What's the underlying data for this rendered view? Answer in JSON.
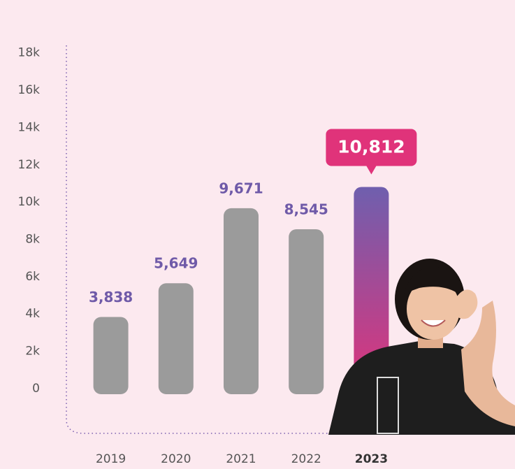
{
  "chart_data": {
    "type": "bar",
    "categories": [
      "2019",
      "2020",
      "2021",
      "2022",
      "2023"
    ],
    "values": [
      3838,
      5649,
      9671,
      8545,
      10812
    ],
    "value_labels": [
      "3,838",
      "5,649",
      "9,671",
      "8,545",
      "10,812"
    ],
    "color": "#9b9b9b",
    "highlight": 4,
    "highlight_colors": [
      "#6f5fae",
      "#e0337a"
    ],
    "label_color": "#6f5aa8",
    "ylim": [
      -2400,
      18400
    ],
    "yticks": [
      0,
      {
        "value": 2000,
        "label": "2k"
      },
      {
        "value": 4000,
        "label": "4k"
      },
      {
        "value": 6000,
        "label": "6k"
      },
      {
        "value": 8000,
        "label": "8k"
      },
      {
        "value": 10000,
        "label": "10k"
      },
      {
        "value": 12000,
        "label": "12k"
      },
      {
        "value": 14000,
        "label": "14k"
      },
      {
        "value": 16000,
        "label": "16k"
      },
      {
        "value": 18000,
        "label": "18k"
      }
    ],
    "grid": false
  }
}
